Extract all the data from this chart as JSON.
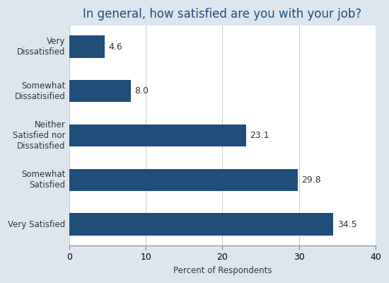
{
  "title": "In general, how satisfied are you with your job?",
  "categories": [
    "Very\nDissatisfied",
    "Somewhat\nDissatisified",
    "Neither\nSatisfied nor\nDissatisfied",
    "Somewhat\nSatisfied",
    "Very Satisfied"
  ],
  "values": [
    4.6,
    8.0,
    23.1,
    29.8,
    34.5
  ],
  "bar_color": "#1F4E79",
  "xlabel": "Percent of Respondents",
  "xlim": [
    0,
    40
  ],
  "xticks": [
    0,
    10,
    20,
    30,
    40
  ],
  "background_color": "#DDE6EF",
  "plot_background_color": "#FFFFFF",
  "title_color": "#1F4E79",
  "label_color": "#333333",
  "title_fontsize": 12,
  "label_fontsize": 8.5,
  "tick_fontsize": 9,
  "value_fontsize": 9,
  "bar_height": 0.5
}
